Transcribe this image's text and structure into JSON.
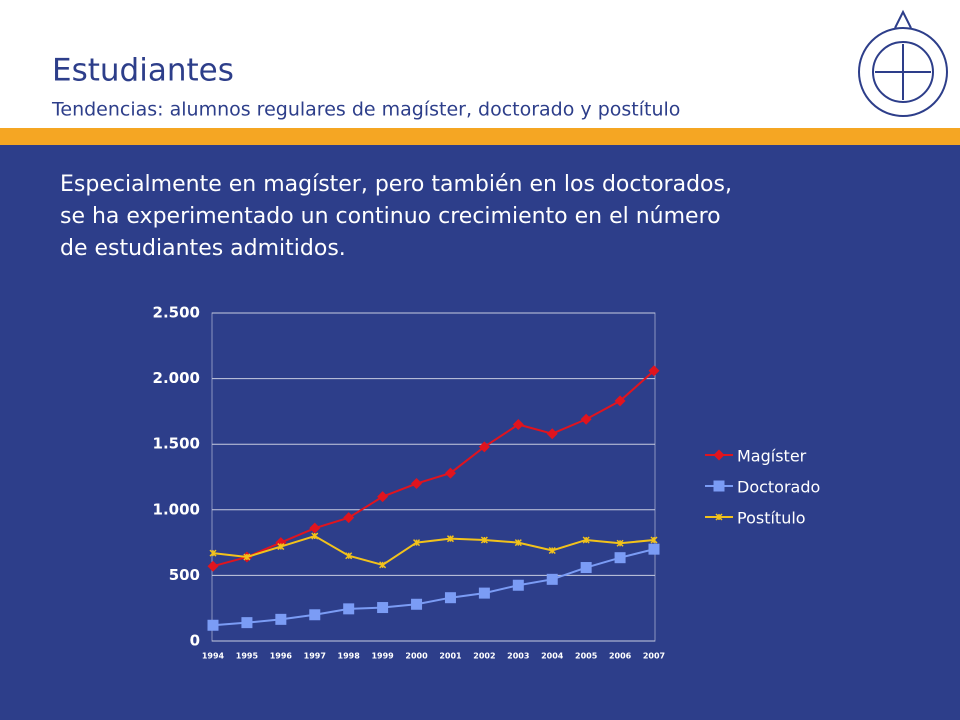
{
  "header": {
    "title": "Estudiantes",
    "subtitle": "Tendencias: alumnos regulares de magíster, doctorado y postítulo"
  },
  "body": {
    "lines": [
      "Especialmente en magíster, pero también en los doctorados,",
      "se ha experimentado un continuo crecimiento en el número",
      "de estudiantes admitidos."
    ]
  },
  "chart_data": {
    "type": "line",
    "categories": [
      "1994",
      "1995",
      "1996",
      "1997",
      "1998",
      "1999",
      "2000",
      "2001",
      "2002",
      "2003",
      "2004",
      "2005",
      "2006",
      "2007"
    ],
    "series": [
      {
        "name": "Magíster",
        "color": "#e0141e",
        "marker": "diamond",
        "values": [
          570,
          640,
          750,
          860,
          940,
          1100,
          1200,
          1280,
          1480,
          1650,
          1580,
          1690,
          1830,
          2060
        ]
      },
      {
        "name": "Doctorado",
        "color": "#7b9cf5",
        "marker": "square",
        "values": [
          120,
          140,
          165,
          200,
          245,
          255,
          280,
          330,
          365,
          425,
          470,
          560,
          635,
          700
        ]
      },
      {
        "name": "Postítulo",
        "color": "#f2c21b",
        "marker": "star",
        "values": [
          670,
          640,
          720,
          800,
          650,
          580,
          750,
          780,
          770,
          750,
          690,
          770,
          745,
          770
        ]
      }
    ],
    "ylim": [
      0,
      2500
    ],
    "yticks": [
      0,
      500,
      {
        "value": 1000,
        "label": "1.000"
      },
      {
        "value": 1500,
        "label": "1.500"
      },
      {
        "value": 2000,
        "label": "2.000"
      },
      {
        "value": 2500,
        "label": "2.500"
      }
    ],
    "grid": true,
    "legend": "right"
  }
}
